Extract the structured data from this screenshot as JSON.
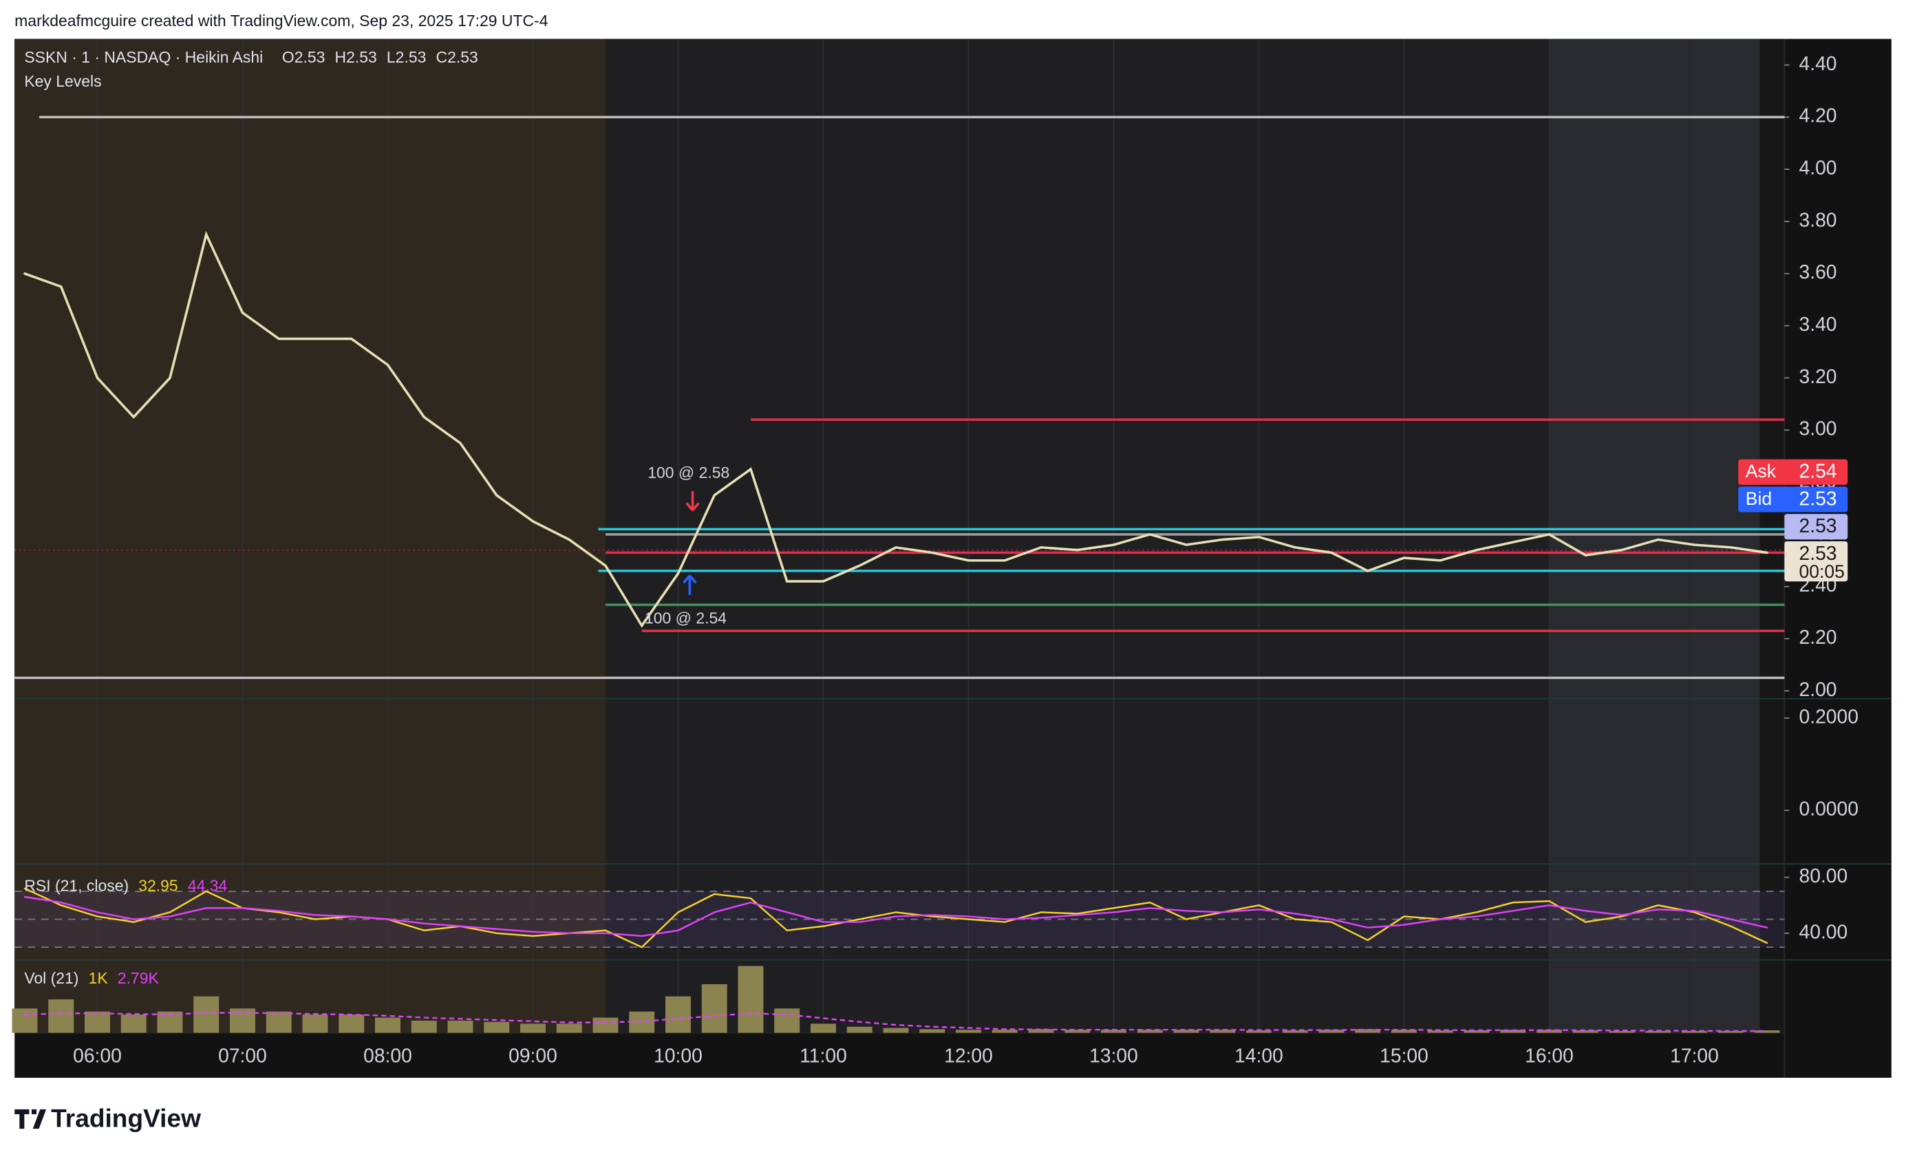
{
  "attribution": "markdeafmcguire created with TradingView.com, Sep 23, 2025 17:29 UTC-4",
  "brand": "TradingView",
  "chart_data": [
    {
      "type": "line",
      "title": "SSKN · 1 · NASDAQ · Heikin Ashi",
      "subtitle": "Key Levels",
      "ohlc": [
        {
          "name": "O",
          "value": 2.53
        },
        {
          "name": "H",
          "value": 2.53
        },
        {
          "name": "L",
          "value": 2.53
        },
        {
          "name": "C",
          "value": 2.53
        }
      ],
      "x": [
        5.5,
        5.75,
        6,
        6.25,
        6.5,
        6.75,
        7,
        7.25,
        7.5,
        7.75,
        8,
        8.25,
        8.5,
        8.75,
        9,
        9.25,
        9.5,
        9.75,
        10,
        10.25,
        10.5,
        10.75,
        11,
        11.25,
        11.5,
        11.75,
        12,
        12.25,
        12.5,
        12.75,
        13,
        13.25,
        13.5,
        13.75,
        14,
        14.25,
        14.5,
        14.75,
        15,
        15.25,
        15.5,
        15.75,
        16,
        16.25,
        16.5,
        16.75,
        17,
        17.25,
        17.5
      ],
      "series": [
        {
          "color": "#e6e1b4",
          "values": [
            3.6,
            3.55,
            3.2,
            3.05,
            3.2,
            3.75,
            3.45,
            3.35,
            3.35,
            3.35,
            3.25,
            3.05,
            2.95,
            2.75,
            2.65,
            2.58,
            2.48,
            2.25,
            2.45,
            2.75,
            2.85,
            2.42,
            2.42,
            2.48,
            2.55,
            2.53,
            2.5,
            2.5,
            2.55,
            2.54,
            2.56,
            2.6,
            2.56,
            2.58,
            2.59,
            2.55,
            2.53,
            2.46,
            2.51,
            2.5,
            2.54,
            2.57,
            2.6,
            2.52,
            2.54,
            2.58,
            2.56,
            2.55,
            2.53
          ]
        }
      ],
      "xlim": [
        5.43,
        17.62
      ],
      "xticks": [
        {
          "value": 6,
          "label": "06:00"
        },
        {
          "value": 7,
          "label": "07:00"
        },
        {
          "value": 8,
          "label": "08:00"
        },
        {
          "value": 9,
          "label": "09:00"
        },
        {
          "value": 10,
          "label": "10:00"
        },
        {
          "value": 11,
          "label": "11:00"
        },
        {
          "value": 12,
          "label": "12:00"
        },
        {
          "value": 13,
          "label": "13:00"
        },
        {
          "value": 14,
          "label": "14:00"
        },
        {
          "value": 15,
          "label": "15:00"
        },
        {
          "value": 16,
          "label": "16:00"
        },
        {
          "value": 17,
          "label": "17:00"
        }
      ],
      "ylim": [
        1.97,
        4.5
      ],
      "yticks": [
        {
          "value": 2.0,
          "label": "2.00"
        },
        {
          "value": 2.2,
          "label": "2.20"
        },
        {
          "value": 2.4,
          "label": "2.40"
        },
        {
          "value": 2.6,
          "label": "2.60"
        },
        {
          "value": 2.8,
          "label": "2.80"
        },
        {
          "value": 3.0,
          "label": "3.00"
        },
        {
          "value": 3.2,
          "label": "3.20"
        },
        {
          "value": 3.4,
          "label": "3.40"
        },
        {
          "value": 3.6,
          "label": "3.60"
        },
        {
          "value": 3.8,
          "label": "3.80"
        },
        {
          "value": 4.0,
          "label": "4.00"
        },
        {
          "value": 4.2,
          "label": "4.20"
        },
        {
          "value": 4.4,
          "label": "4.40"
        }
      ],
      "grid": "x",
      "sessions": [
        {
          "start": 5.43,
          "end": 9.5,
          "color": "#2f281f"
        },
        {
          "start": 9.5,
          "end": 16,
          "color": "#1f1f21"
        },
        {
          "start": 16,
          "end": 17.45,
          "color": "#292a2e"
        }
      ],
      "levels": [
        {
          "price": 4.2,
          "start": 5.6,
          "color": "#bdbdbd"
        },
        {
          "price": 3.04,
          "start": 10.5,
          "color": "#e0304a"
        },
        {
          "price": 2.62,
          "start": 9.45,
          "color": "#26c6da"
        },
        {
          "price": 2.6,
          "start": 9.5,
          "color": "#9e9e9e"
        },
        {
          "price": 2.53,
          "start": 9.5,
          "color": "#e0304a"
        },
        {
          "price": 2.46,
          "start": 9.45,
          "color": "#26c6da"
        },
        {
          "price": 2.33,
          "start": 9.5,
          "color": "#3f8f5a"
        },
        {
          "price": 2.23,
          "start": 9.75,
          "color": "#e0304a"
        },
        {
          "price": 2.05,
          "start": 5.43,
          "color": "#bdbdbd"
        }
      ],
      "annotations": [
        {
          "text": "100 @ 2.58",
          "time": 10.1,
          "price": 2.58,
          "side": "sell",
          "color": "#f23645"
        },
        {
          "text": "100 @ 2.54",
          "time": 10.08,
          "price": 2.54,
          "side": "buy",
          "color": "#2962ff"
        }
      ],
      "price_labels": [
        {
          "label": "Ask",
          "value": 2.54,
          "color": "#f23645",
          "text_color": "#ffffff"
        },
        {
          "label": "Bid",
          "value": 2.53,
          "color": "#2962ff",
          "text_color": "#ffffff"
        },
        {
          "value": 2.53,
          "color": "#b7b9f3",
          "text_color": "#1a1a1a"
        },
        {
          "value": 2.53,
          "countdown": "00:05",
          "color": "#ede3d3",
          "text_color": "#1a1a1a"
        }
      ]
    },
    {
      "type": "line",
      "ylim": [
        -0.116,
        0.242
      ],
      "yticks": [
        {
          "value": 0.0,
          "label": "0.0000"
        },
        {
          "value": 0.2,
          "label": "0.2000"
        }
      ],
      "series": []
    },
    {
      "type": "line",
      "title": "RSI (21, close)",
      "ylim": [
        20.9,
        89.6
      ],
      "yticks": [
        {
          "value": 40,
          "label": "40.00"
        },
        {
          "value": 80,
          "label": "80.00"
        }
      ],
      "bands": [
        30,
        50,
        70
      ],
      "x": [
        5.5,
        5.75,
        6,
        6.25,
        6.5,
        6.75,
        7,
        7.25,
        7.5,
        7.75,
        8,
        8.25,
        8.5,
        8.75,
        9,
        9.25,
        9.5,
        9.75,
        10,
        10.25,
        10.5,
        10.75,
        11,
        11.25,
        11.5,
        11.75,
        12,
        12.25,
        12.5,
        12.75,
        13,
        13.25,
        13.5,
        13.75,
        14,
        14.25,
        14.5,
        14.75,
        15,
        15.25,
        15.5,
        15.75,
        16,
        16.25,
        16.5,
        16.75,
        17,
        17.25,
        17.5
      ],
      "series": [
        {
          "color": "#f5d327",
          "legend_value": 32.95,
          "values": [
            72,
            60,
            52,
            48,
            55,
            70,
            58,
            55,
            50,
            52,
            50,
            42,
            45,
            40,
            38,
            40,
            42,
            30,
            55,
            68,
            65,
            42,
            45,
            50,
            55,
            52,
            50,
            48,
            55,
            54,
            58,
            62,
            50,
            55,
            60,
            50,
            48,
            35,
            52,
            50,
            55,
            62,
            63,
            48,
            52,
            60,
            55,
            45,
            33
          ]
        },
        {
          "color": "#e040fb",
          "legend_value": 44.34,
          "values": [
            66,
            62,
            55,
            50,
            52,
            58,
            58,
            56,
            53,
            52,
            50,
            47,
            45,
            43,
            41,
            40,
            40,
            38,
            42,
            55,
            62,
            55,
            48,
            48,
            52,
            53,
            52,
            50,
            51,
            53,
            55,
            58,
            56,
            55,
            57,
            54,
            50,
            44,
            46,
            50,
            52,
            56,
            60,
            56,
            53,
            57,
            56,
            50,
            44
          ]
        }
      ]
    },
    {
      "type": "bar",
      "title": "Vol (21)",
      "ylim": [
        0,
        12000
      ],
      "x": [
        5.5,
        5.75,
        6,
        6.25,
        6.5,
        6.75,
        7,
        7.25,
        7.5,
        7.75,
        8,
        8.25,
        8.5,
        8.75,
        9,
        9.25,
        9.5,
        9.75,
        10,
        10.25,
        10.5,
        10.75,
        11,
        11.25,
        11.5,
        11.75,
        12,
        12.25,
        12.5,
        12.75,
        13,
        13.25,
        13.5,
        13.75,
        14,
        14.25,
        14.5,
        14.75,
        15,
        15.25,
        15.5,
        15.75,
        16,
        16.25,
        16.5,
        16.75,
        17,
        17.25,
        17.5
      ],
      "series": [
        {
          "color": "#8c8450",
          "legend_value": {
            "value": 1000,
            "label": "1K"
          },
          "values": [
            4000,
            5500,
            3500,
            3000,
            3500,
            6000,
            4000,
            3500,
            3000,
            3000,
            2500,
            2000,
            2000,
            1800,
            1500,
            1500,
            2500,
            3500,
            6000,
            8000,
            11000,
            4000,
            1500,
            1000,
            800,
            600,
            500,
            500,
            600,
            500,
            500,
            500,
            500,
            500,
            400,
            400,
            500,
            600,
            500,
            400,
            400,
            500,
            500,
            400,
            300,
            300,
            300,
            300,
            400
          ]
        },
        {
          "type": "line",
          "color": "#e040fb",
          "legend_value": {
            "value": 2790,
            "label": "2.79K"
          },
          "values": [
            3000,
            3200,
            3200,
            3100,
            3000,
            3300,
            3300,
            3200,
            3100,
            3000,
            2800,
            2500,
            2300,
            2100,
            1900,
            1700,
            1700,
            1900,
            2300,
            2800,
            3200,
            3000,
            2400,
            1800,
            1300,
            1000,
            800,
            600,
            550,
            500,
            500,
            500,
            500,
            500,
            450,
            450,
            450,
            500,
            500,
            450,
            420,
            420,
            450,
            420,
            380,
            350,
            320,
            300,
            300
          ]
        }
      ]
    }
  ]
}
